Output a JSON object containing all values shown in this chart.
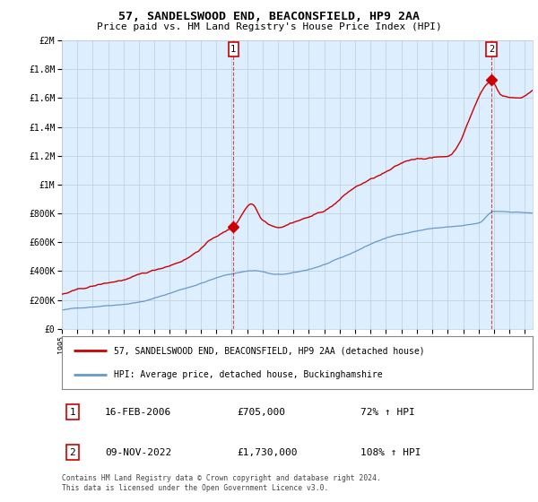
{
  "title": "57, SANDELSWOOD END, BEACONSFIELD, HP9 2AA",
  "subtitle": "Price paid vs. HM Land Registry's House Price Index (HPI)",
  "hpi_label": "HPI: Average price, detached house, Buckinghamshire",
  "price_label": "57, SANDELSWOOD END, BEACONSFIELD, HP9 2AA (detached house)",
  "footer": "Contains HM Land Registry data © Crown copyright and database right 2024.\nThis data is licensed under the Open Government Licence v3.0.",
  "sale1_date": "16-FEB-2006",
  "sale1_price": "£705,000",
  "sale1_hpi": "72% ↑ HPI",
  "sale2_date": "09-NOV-2022",
  "sale2_price": "£1,730,000",
  "sale2_hpi": "108% ↑ HPI",
  "red_color": "#cc0000",
  "blue_color": "#6699cc",
  "bg_color": "#ddeeff",
  "grid_color": "#bbccdd",
  "sale1_year": 2006.12,
  "sale2_year": 2022.85,
  "sale1_price_val": 705000,
  "sale2_price_val": 1730000,
  "xmin": 1995,
  "xmax": 2025.5,
  "ymin": 0,
  "ymax": 2000000
}
